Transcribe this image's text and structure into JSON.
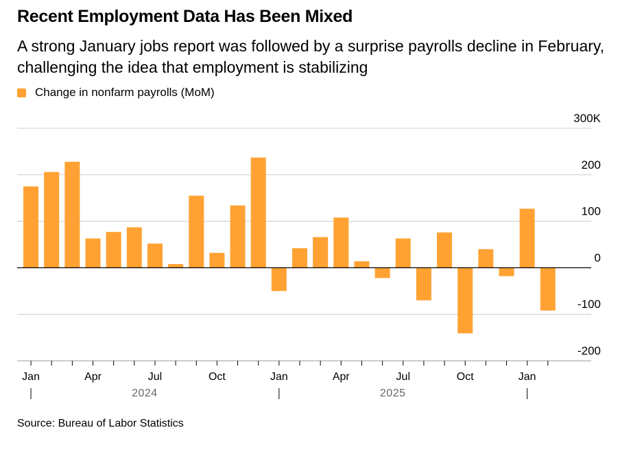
{
  "header": {
    "title": "Recent Employment Data Has Been Mixed",
    "subtitle": "A strong January jobs report was followed by a surprise payrolls decline in February, challenging the idea that employment is stabilizing"
  },
  "legend": {
    "label": "Change in nonfarm payrolls (MoM)"
  },
  "footer": {
    "source": "Source: Bureau of Labor Statistics"
  },
  "colors": {
    "bar": "#FFA233",
    "grid": "#cccccc",
    "zero_line": "#000000"
  },
  "chart_data": {
    "type": "bar",
    "categories": [
      "Jan 2024",
      "Feb 2024",
      "Mar 2024",
      "Apr 2024",
      "May 2024",
      "Jun 2024",
      "Jul 2024",
      "Aug 2024",
      "Sep 2024",
      "Oct 2024",
      "Nov 2024",
      "Dec 2024",
      "Jan 2025",
      "Feb 2025",
      "Mar 2025",
      "Apr 2025",
      "May 2025",
      "Jun 2025",
      "Jul 2025",
      "Aug 2025",
      "Sep 2025",
      "Oct 2025",
      "Nov 2025",
      "Dec 2025",
      "Jan 2026",
      "Feb 2026"
    ],
    "series": [
      {
        "name": "Change in nonfarm payrolls (MoM)",
        "values": [
          175,
          206,
          228,
          63,
          77,
          87,
          52,
          8,
          155,
          32,
          134,
          237,
          -50,
          42,
          66,
          108,
          14,
          -22,
          63,
          -70,
          76,
          -141,
          40,
          -18,
          127,
          -92
        ]
      }
    ],
    "ylim": [
      -200,
      300
    ],
    "yticks": [
      -200,
      -100,
      0,
      100,
      200,
      300
    ],
    "ytick_labels": [
      "-200",
      "-100",
      "0",
      "100",
      "200",
      "300K"
    ],
    "xtick_labels": [
      {
        "index": 0,
        "label": "Jan"
      },
      {
        "index": 3,
        "label": "Apr"
      },
      {
        "index": 6,
        "label": "Jul"
      },
      {
        "index": 9,
        "label": "Oct"
      },
      {
        "index": 12,
        "label": "Jan"
      },
      {
        "index": 15,
        "label": "Apr"
      },
      {
        "index": 18,
        "label": "Jul"
      },
      {
        "index": 21,
        "label": "Oct"
      },
      {
        "index": 24,
        "label": "Jan"
      }
    ],
    "year_labels": [
      {
        "label": "2024",
        "start_index": 0,
        "end_index": 11
      },
      {
        "label": "2025",
        "start_index": 12,
        "end_index": 23
      }
    ],
    "year_dividers": [
      0,
      12,
      24
    ],
    "grid": true,
    "legend_position": "top-left",
    "y_axis_side": "right"
  }
}
